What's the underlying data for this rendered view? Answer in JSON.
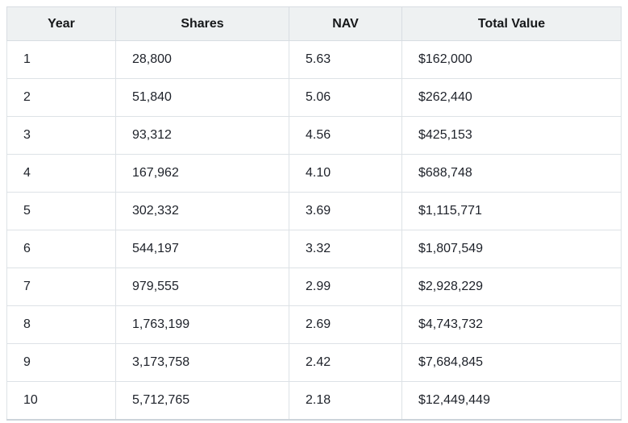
{
  "table": {
    "columns": [
      "Year",
      "Shares",
      "NAV",
      "Total Value"
    ],
    "rows": [
      [
        "1",
        "28,800",
        "5.63",
        "$162,000"
      ],
      [
        "2",
        "51,840",
        "5.06",
        "$262,440"
      ],
      [
        "3",
        "93,312",
        "4.56",
        "$425,153"
      ],
      [
        "4",
        "167,962",
        "4.10",
        "$688,748"
      ],
      [
        "5",
        "302,332",
        "3.69",
        "$1,115,771"
      ],
      [
        "6",
        "544,197",
        "3.32",
        "$1,807,549"
      ],
      [
        "7",
        "979,555",
        "2.99",
        "$2,928,229"
      ],
      [
        "8",
        "1,763,199",
        "2.69",
        "$4,743,732"
      ],
      [
        "9",
        "3,173,758",
        "2.42",
        "$7,684,845"
      ],
      [
        "10",
        "5,712,765",
        "2.18",
        "$12,449,449"
      ]
    ],
    "colors": {
      "header_bg": "#eef1f2",
      "grid_border": "#dde2e6",
      "outer_border": "#d8dde2",
      "bottom_border": "#ccd4da",
      "text": "#1d2129"
    }
  },
  "chart_data": {
    "type": "table",
    "title": "",
    "columns": [
      "Year",
      "Shares",
      "NAV",
      "Total Value"
    ],
    "rows": [
      {
        "year": 1,
        "shares": 28800,
        "nav": 5.63,
        "total_value": 162000
      },
      {
        "year": 2,
        "shares": 51840,
        "nav": 5.06,
        "total_value": 262440
      },
      {
        "year": 3,
        "shares": 93312,
        "nav": 4.56,
        "total_value": 425153
      },
      {
        "year": 4,
        "shares": 167962,
        "nav": 4.1,
        "total_value": 688748
      },
      {
        "year": 5,
        "shares": 302332,
        "nav": 3.69,
        "total_value": 1115771
      },
      {
        "year": 6,
        "shares": 544197,
        "nav": 3.32,
        "total_value": 1807549
      },
      {
        "year": 7,
        "shares": 979555,
        "nav": 2.99,
        "total_value": 2928229
      },
      {
        "year": 8,
        "shares": 1763199,
        "nav": 2.69,
        "total_value": 4743732
      },
      {
        "year": 9,
        "shares": 3173758,
        "nav": 2.42,
        "total_value": 7684845
      },
      {
        "year": 10,
        "shares": 5712765,
        "nav": 2.18,
        "total_value": 12449449
      }
    ]
  }
}
